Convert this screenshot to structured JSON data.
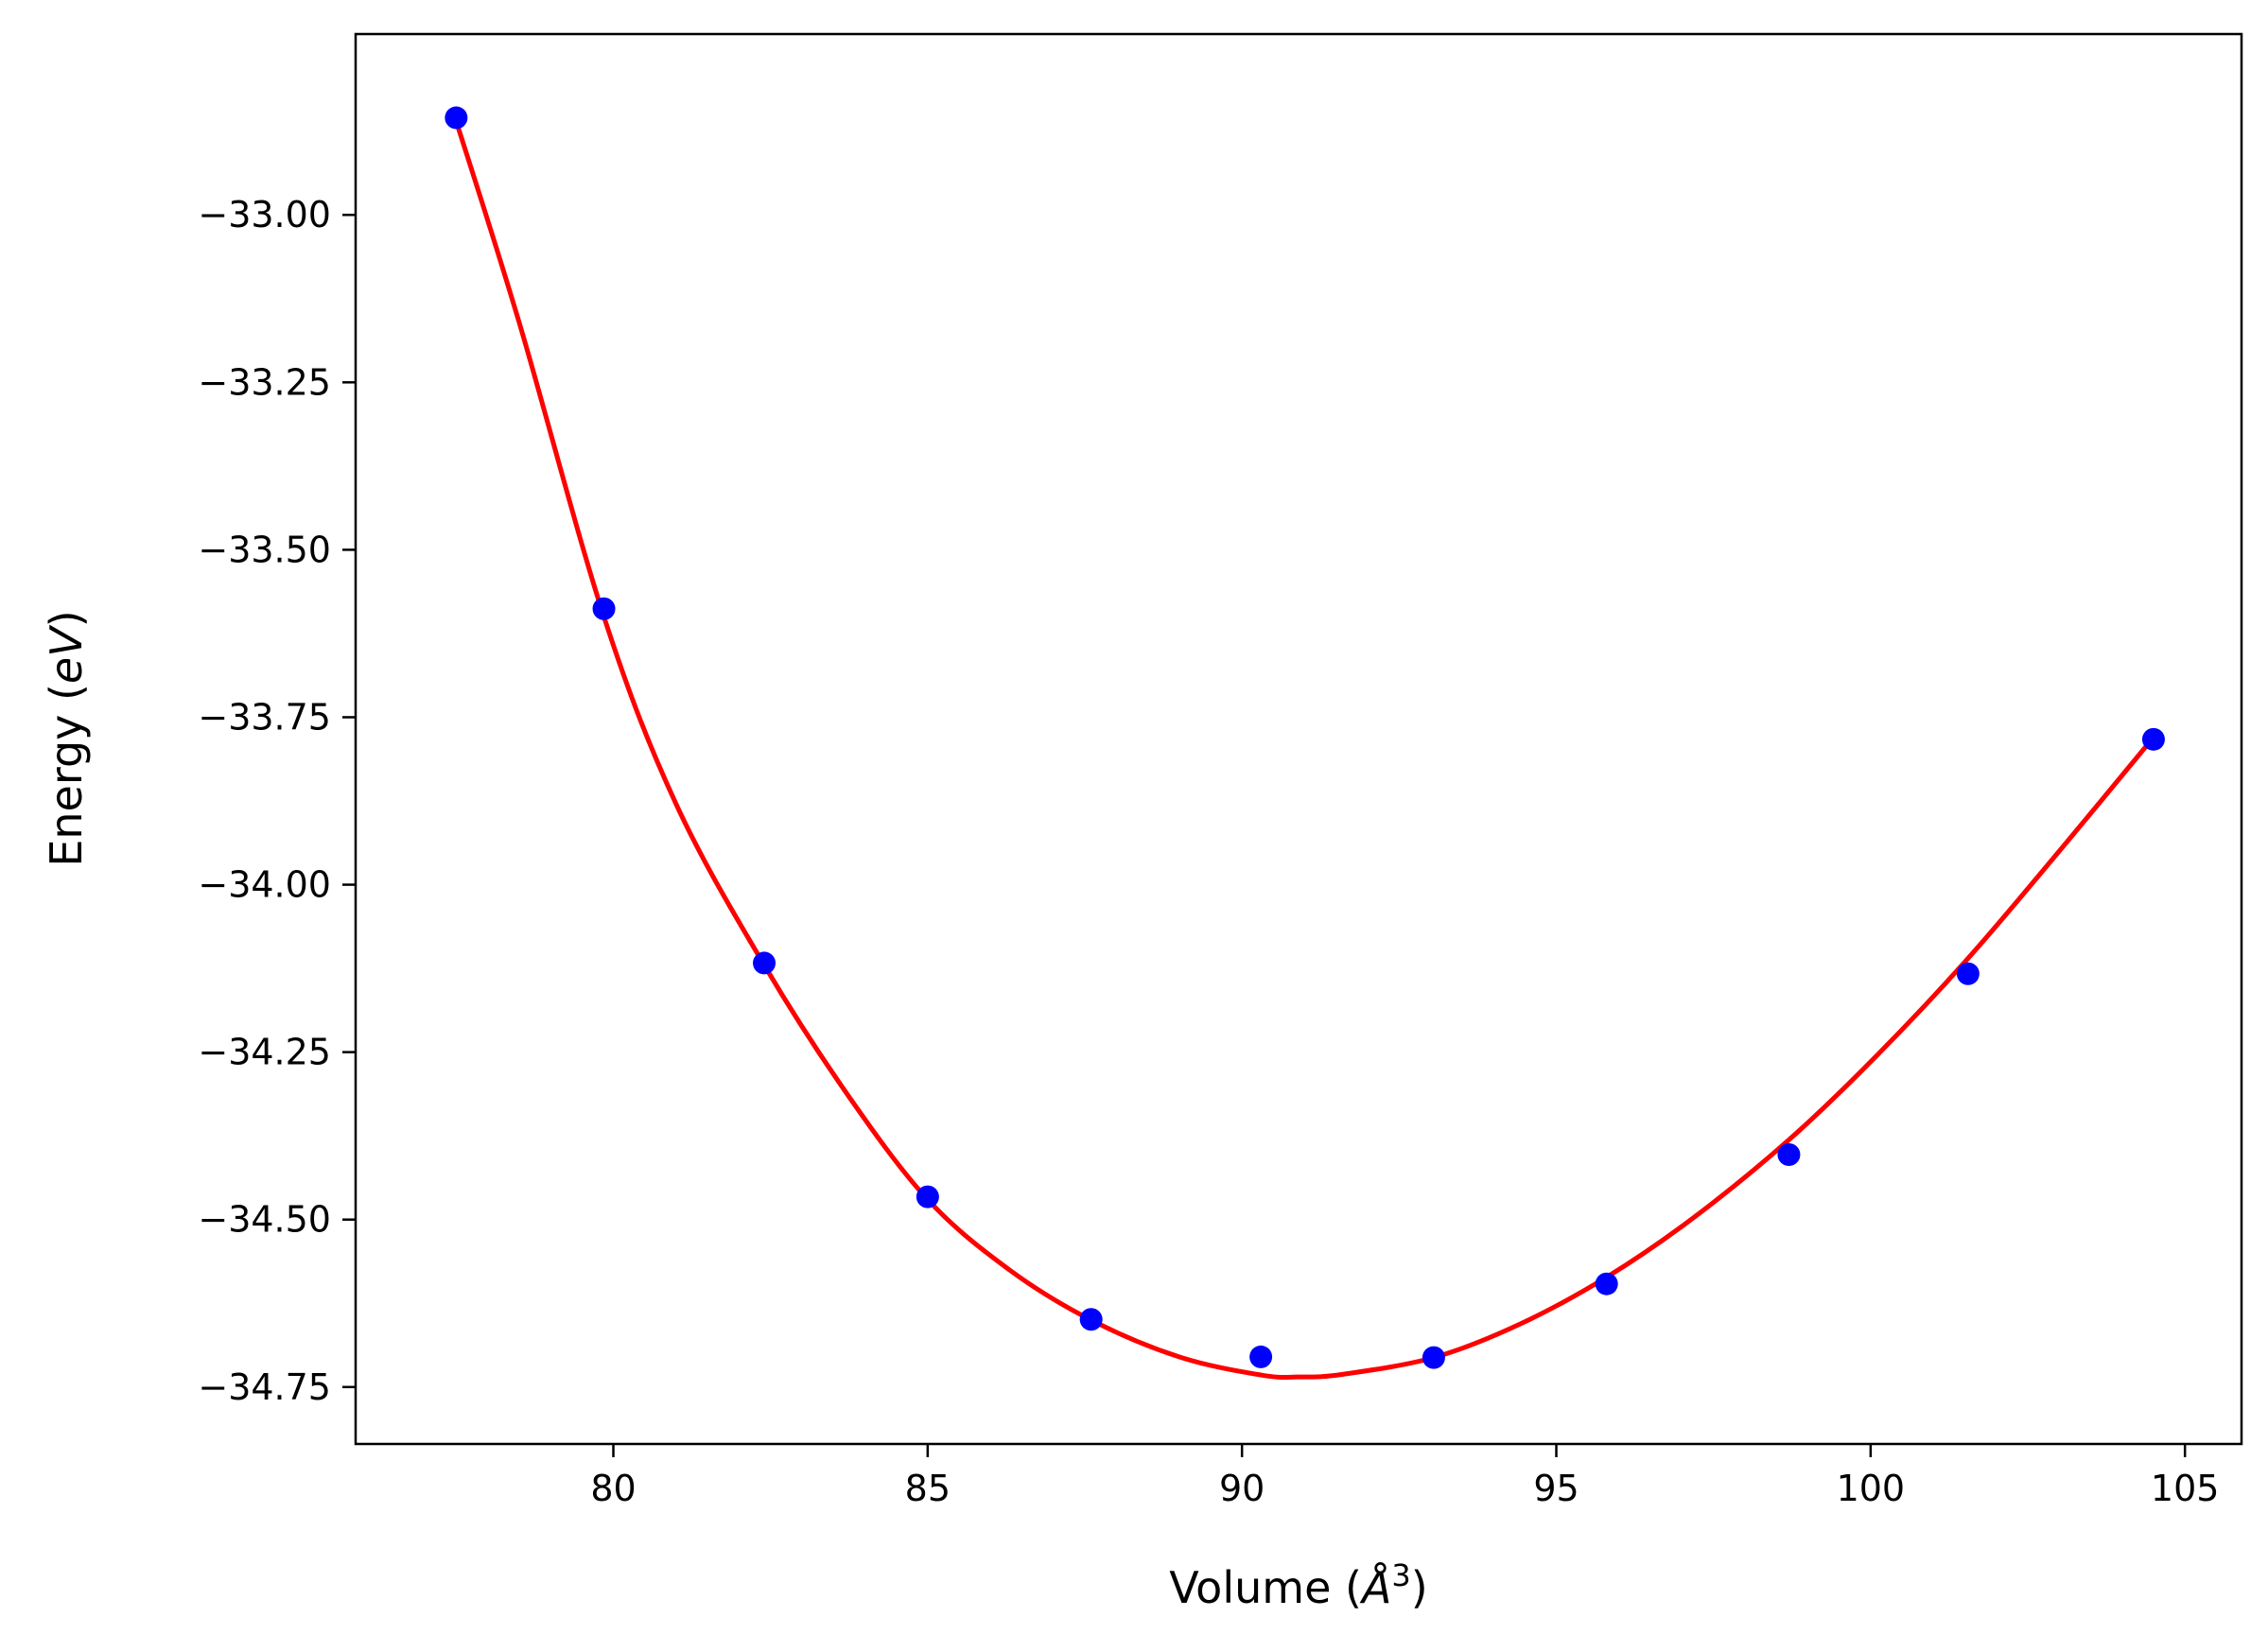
{
  "chart_data": {
    "type": "scatter",
    "title": "",
    "xlabel": "Volume (",
    "xlabel_symbol": "Å",
    "xlabel_sup": "3",
    "xlabel_close": ")",
    "ylabel": "Energy (",
    "ylabel_unit": "eV",
    "ylabel_close": ")",
    "xlim": [
      75.9,
      105.9
    ],
    "ylim": [
      -34.835,
      -32.73
    ],
    "xticks": [
      80,
      85,
      90,
      95,
      100,
      105
    ],
    "xtick_labels": [
      "80",
      "85",
      "90",
      "95",
      "100",
      "105"
    ],
    "yticks": [
      -33.0,
      -33.25,
      -33.5,
      -33.75,
      -34.0,
      -34.25,
      -34.5,
      -34.75
    ],
    "ytick_labels": [
      "−33.00",
      "−33.25",
      "−33.50",
      "−33.75",
      "−34.00",
      "−34.25",
      "−34.50",
      "−34.75"
    ],
    "grid": false,
    "series": [
      {
        "kind": "points",
        "color": "#0000ff",
        "x": [
          77.5,
          79.85,
          82.4,
          85.0,
          87.6,
          90.3,
          93.05,
          95.8,
          98.7,
          101.55,
          104.5
        ],
        "y": [
          -32.855,
          -33.588,
          -34.117,
          -34.466,
          -34.649,
          -34.705,
          -34.706,
          -34.596,
          -34.403,
          -34.133,
          -33.783
        ]
      },
      {
        "kind": "fit-curve",
        "color": "#ff0000",
        "x": [
          77.5,
          78.5,
          79.85,
          81.0,
          82.4,
          83.7,
          85.0,
          86.3,
          87.6,
          89.0,
          90.3,
          90.9,
          91.6,
          93.05,
          94.4,
          95.8,
          97.2,
          98.7,
          100.1,
          101.55,
          103.0,
          104.5
        ],
        "y": [
          -32.86,
          -33.16,
          -33.6,
          -33.88,
          -34.12,
          -34.31,
          -34.47,
          -34.575,
          -34.65,
          -34.705,
          -34.732,
          -34.735,
          -34.731,
          -34.706,
          -34.657,
          -34.586,
          -34.496,
          -34.381,
          -34.255,
          -34.11,
          -33.95,
          -33.78
        ]
      }
    ]
  }
}
